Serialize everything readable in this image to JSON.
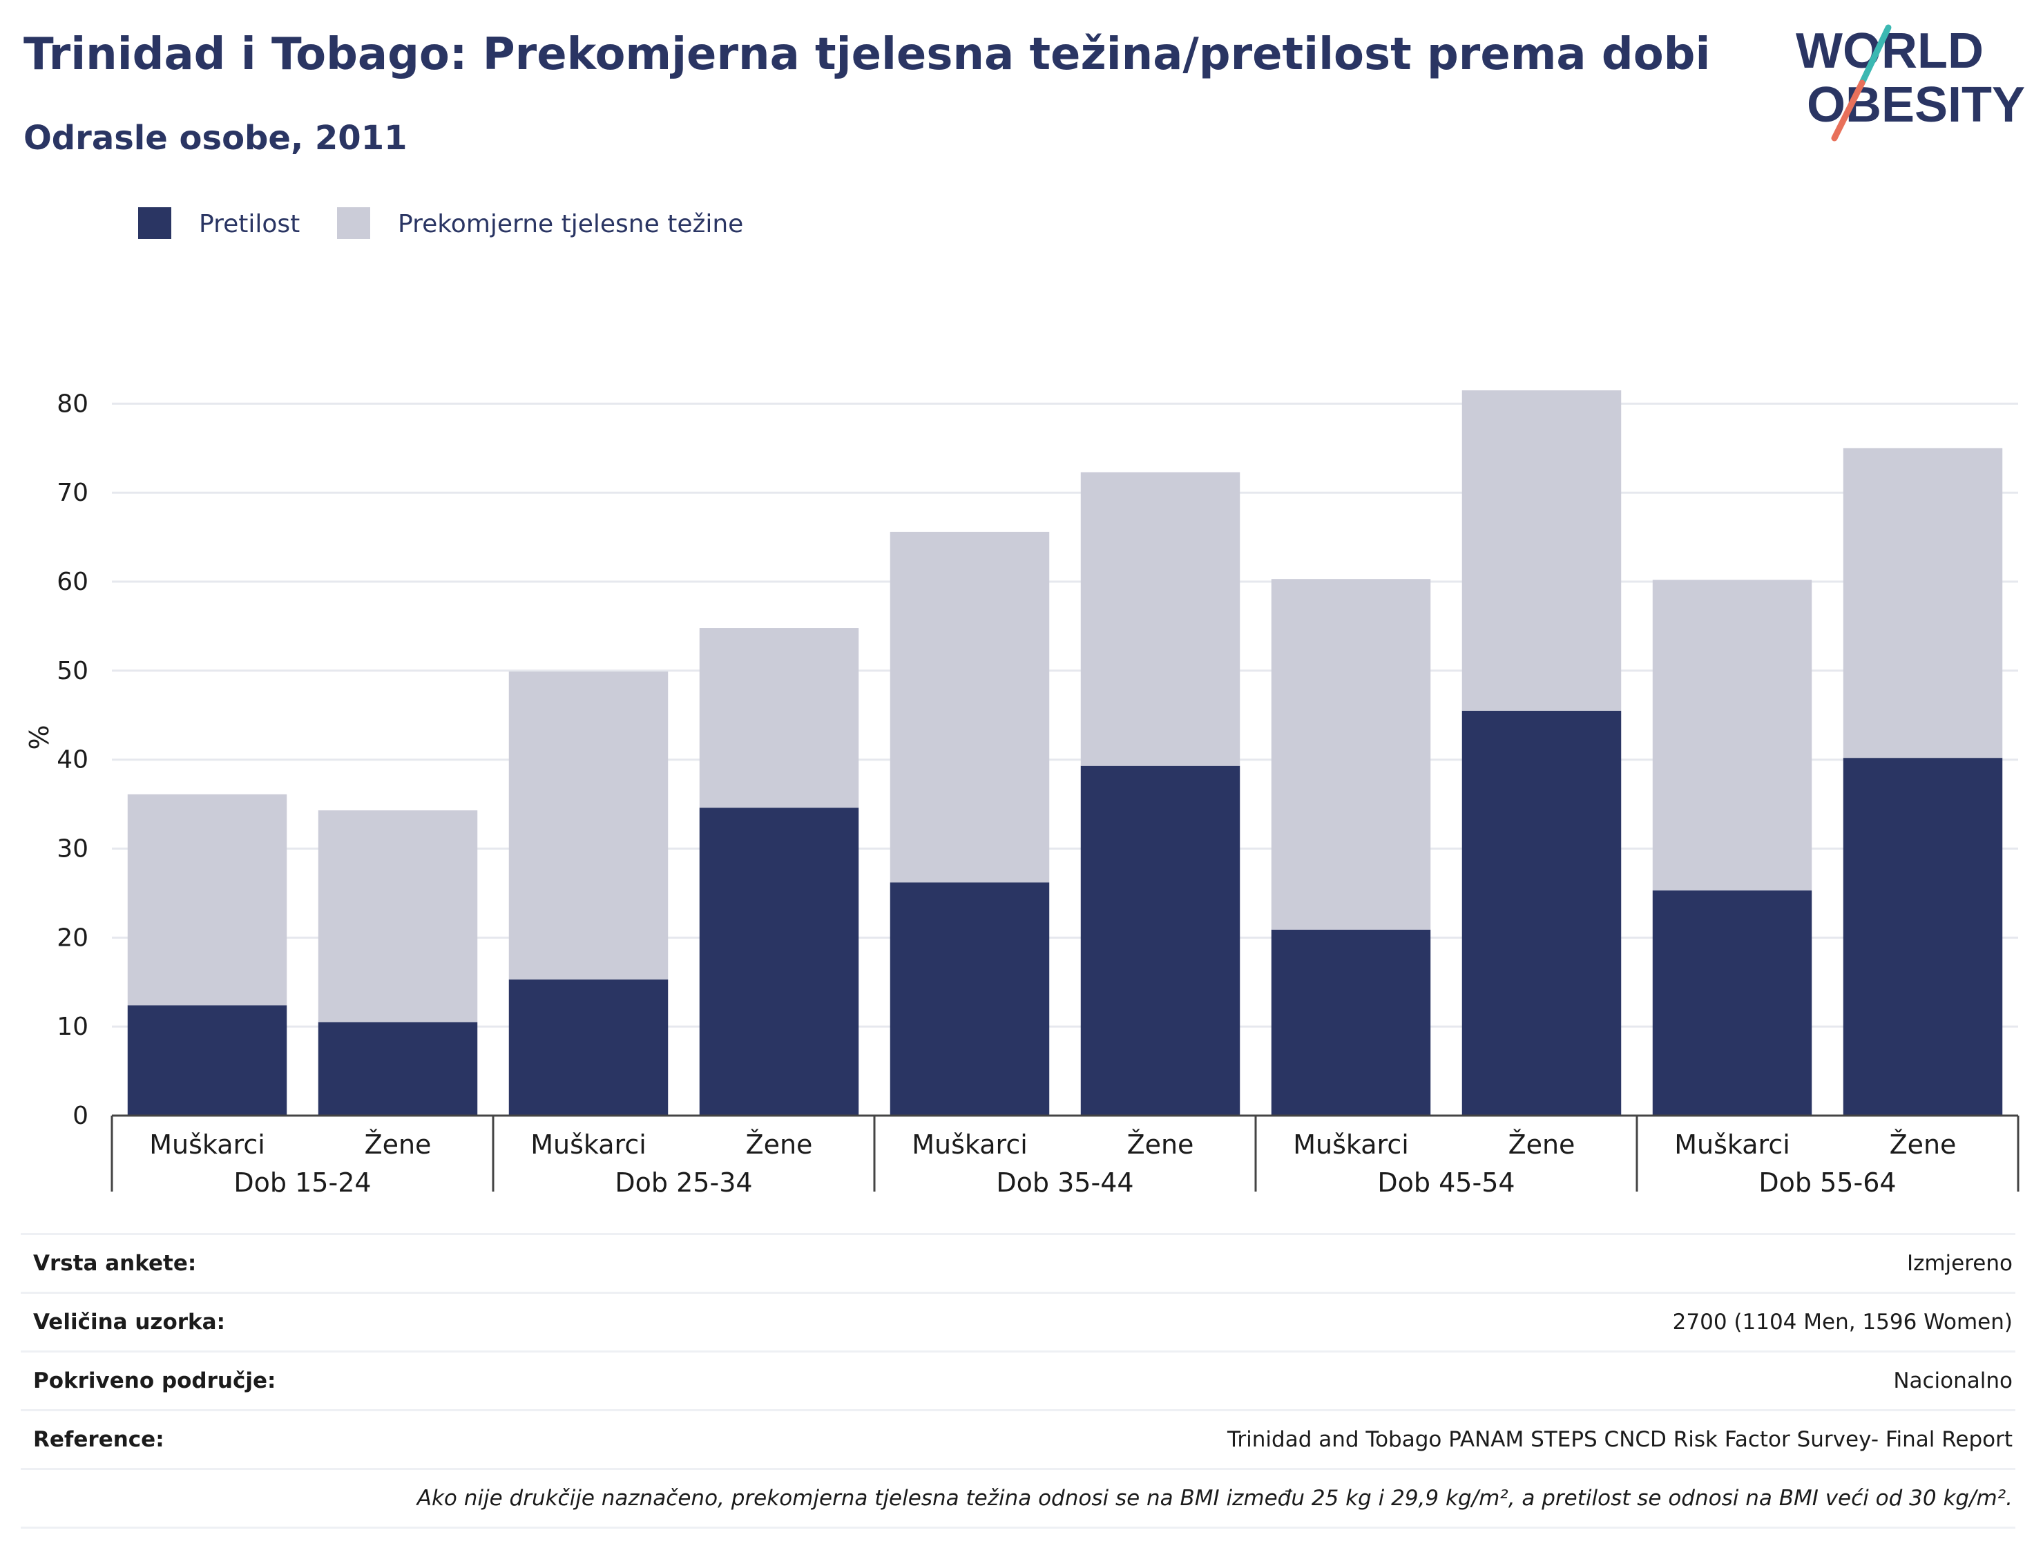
{
  "title": "Trinidad i Tobago: Prekomjerna tjelesna težina/pretilost prema dobi",
  "subtitle": "Odrasle osobe, 2011",
  "logo": {
    "line1": "WORLD",
    "line2": "OBESITY"
  },
  "colors": {
    "obesity": "#2a3563",
    "overweight": "#cbccd8",
    "text": "#2a3563",
    "logo_teal": "#3bb8b2",
    "logo_coral": "#e8705a"
  },
  "chart_data": {
    "type": "bar",
    "stacked": true,
    "ylabel": "%",
    "ylim": [
      0,
      85
    ],
    "yticks": [
      0,
      10,
      20,
      30,
      40,
      50,
      60,
      70,
      80
    ],
    "grid": true,
    "legend_position": "top-left",
    "groups": [
      "Dob 15-24",
      "Dob 25-34",
      "Dob 35-44",
      "Dob 45-54",
      "Dob 55-64"
    ],
    "sub_categories": [
      "Muškarci",
      "Žene"
    ],
    "series": [
      {
        "name": "Pretilost",
        "values": [
          12.4,
          10.5,
          15.3,
          34.6,
          26.2,
          39.3,
          20.9,
          45.5,
          25.3,
          40.2
        ]
      },
      {
        "name": "Prekomjerne tjelesne težine",
        "values": [
          23.7,
          23.8,
          34.6,
          20.2,
          39.4,
          33.0,
          39.4,
          36.0,
          34.9,
          34.8
        ]
      }
    ]
  },
  "meta": [
    {
      "label": "Vrsta ankete:",
      "value": "Izmjereno"
    },
    {
      "label": "Veličina uzorka:",
      "value": "2700 (1104 Men, 1596 Women)"
    },
    {
      "label": "Pokriveno područje:",
      "value": "Nacionalno"
    },
    {
      "label": "Reference:",
      "value": "Trinidad and Tobago PANAM STEPS CNCD Risk Factor Survey- Final Report"
    }
  ],
  "note": "Ako nije drukčije naznačeno, prekomjerna tjelesna težina odnosi se na BMI između 25 kg i 29,9 kg/m², a pretilost se odnosi na BMI veći od 30 kg/m²."
}
